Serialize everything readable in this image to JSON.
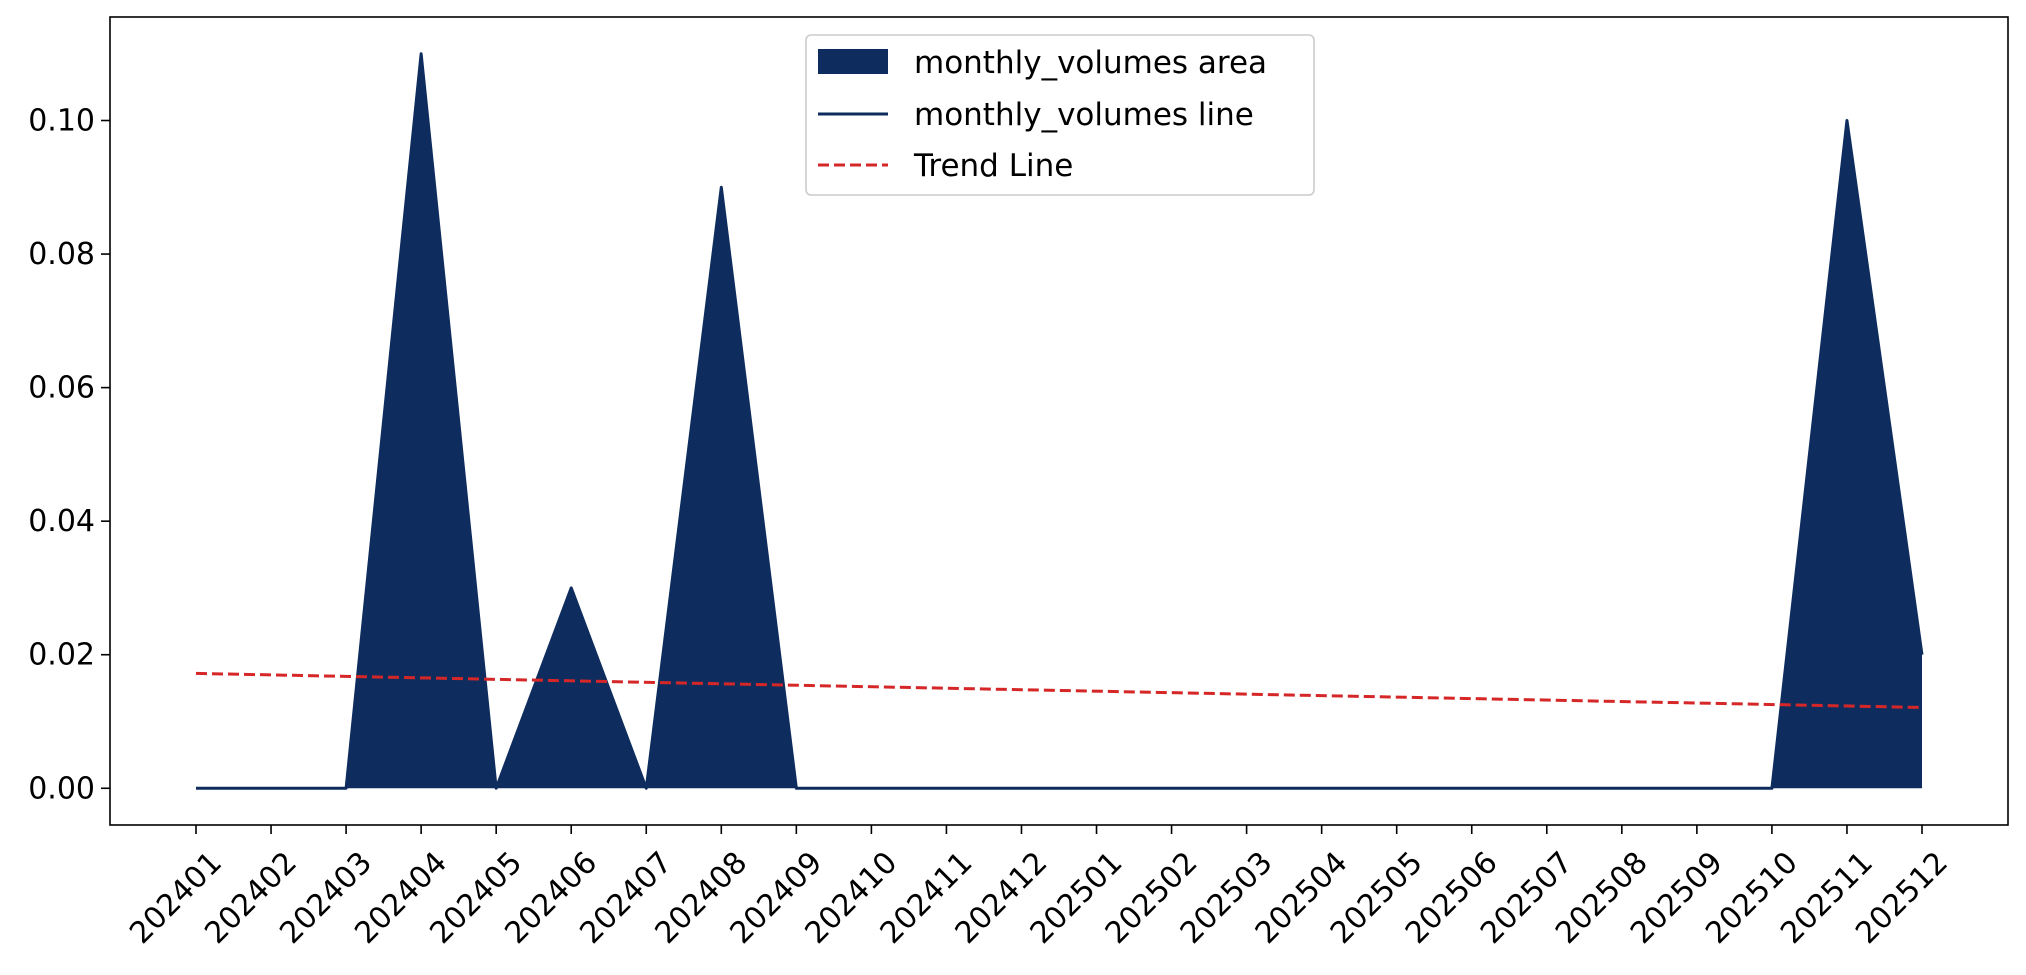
{
  "chart_data": {
    "type": "area",
    "title": "",
    "xlabel": "",
    "ylabel": "",
    "categories": [
      "202401",
      "202402",
      "202403",
      "202404",
      "202405",
      "202406",
      "202407",
      "202408",
      "202409",
      "202410",
      "202411",
      "202412",
      "202501",
      "202502",
      "202503",
      "202504",
      "202505",
      "202506",
      "202507",
      "202508",
      "202509",
      "202510",
      "202511",
      "202512"
    ],
    "series": [
      {
        "name": "monthly_volumes area",
        "kind": "area",
        "color": "#0e2d5e",
        "values": [
          0,
          0,
          0,
          0.11,
          0,
          0.03,
          0,
          0.09,
          0,
          0,
          0,
          0,
          0,
          0,
          0,
          0,
          0,
          0,
          0,
          0,
          0,
          0,
          0.1,
          0.02
        ]
      },
      {
        "name": "monthly_volumes line",
        "kind": "line",
        "color": "#0e2d5e",
        "values": [
          0,
          0,
          0,
          0.11,
          0,
          0.03,
          0,
          0.09,
          0,
          0,
          0,
          0,
          0,
          0,
          0,
          0,
          0,
          0,
          0,
          0,
          0,
          0,
          0.1,
          0.02
        ]
      },
      {
        "name": "Trend Line",
        "kind": "dashed-line",
        "color": "#d62728",
        "start": 0.0172,
        "end": 0.0121
      }
    ],
    "ylim": [
      -0.0055,
      0.1155
    ],
    "yticks": [
      0.0,
      0.02,
      0.04,
      0.06,
      0.08,
      0.1
    ],
    "ytick_labels": [
      "0.00",
      "0.02",
      "0.04",
      "0.06",
      "0.08",
      "0.10"
    ],
    "grid": false,
    "legend_position": "top-center"
  }
}
